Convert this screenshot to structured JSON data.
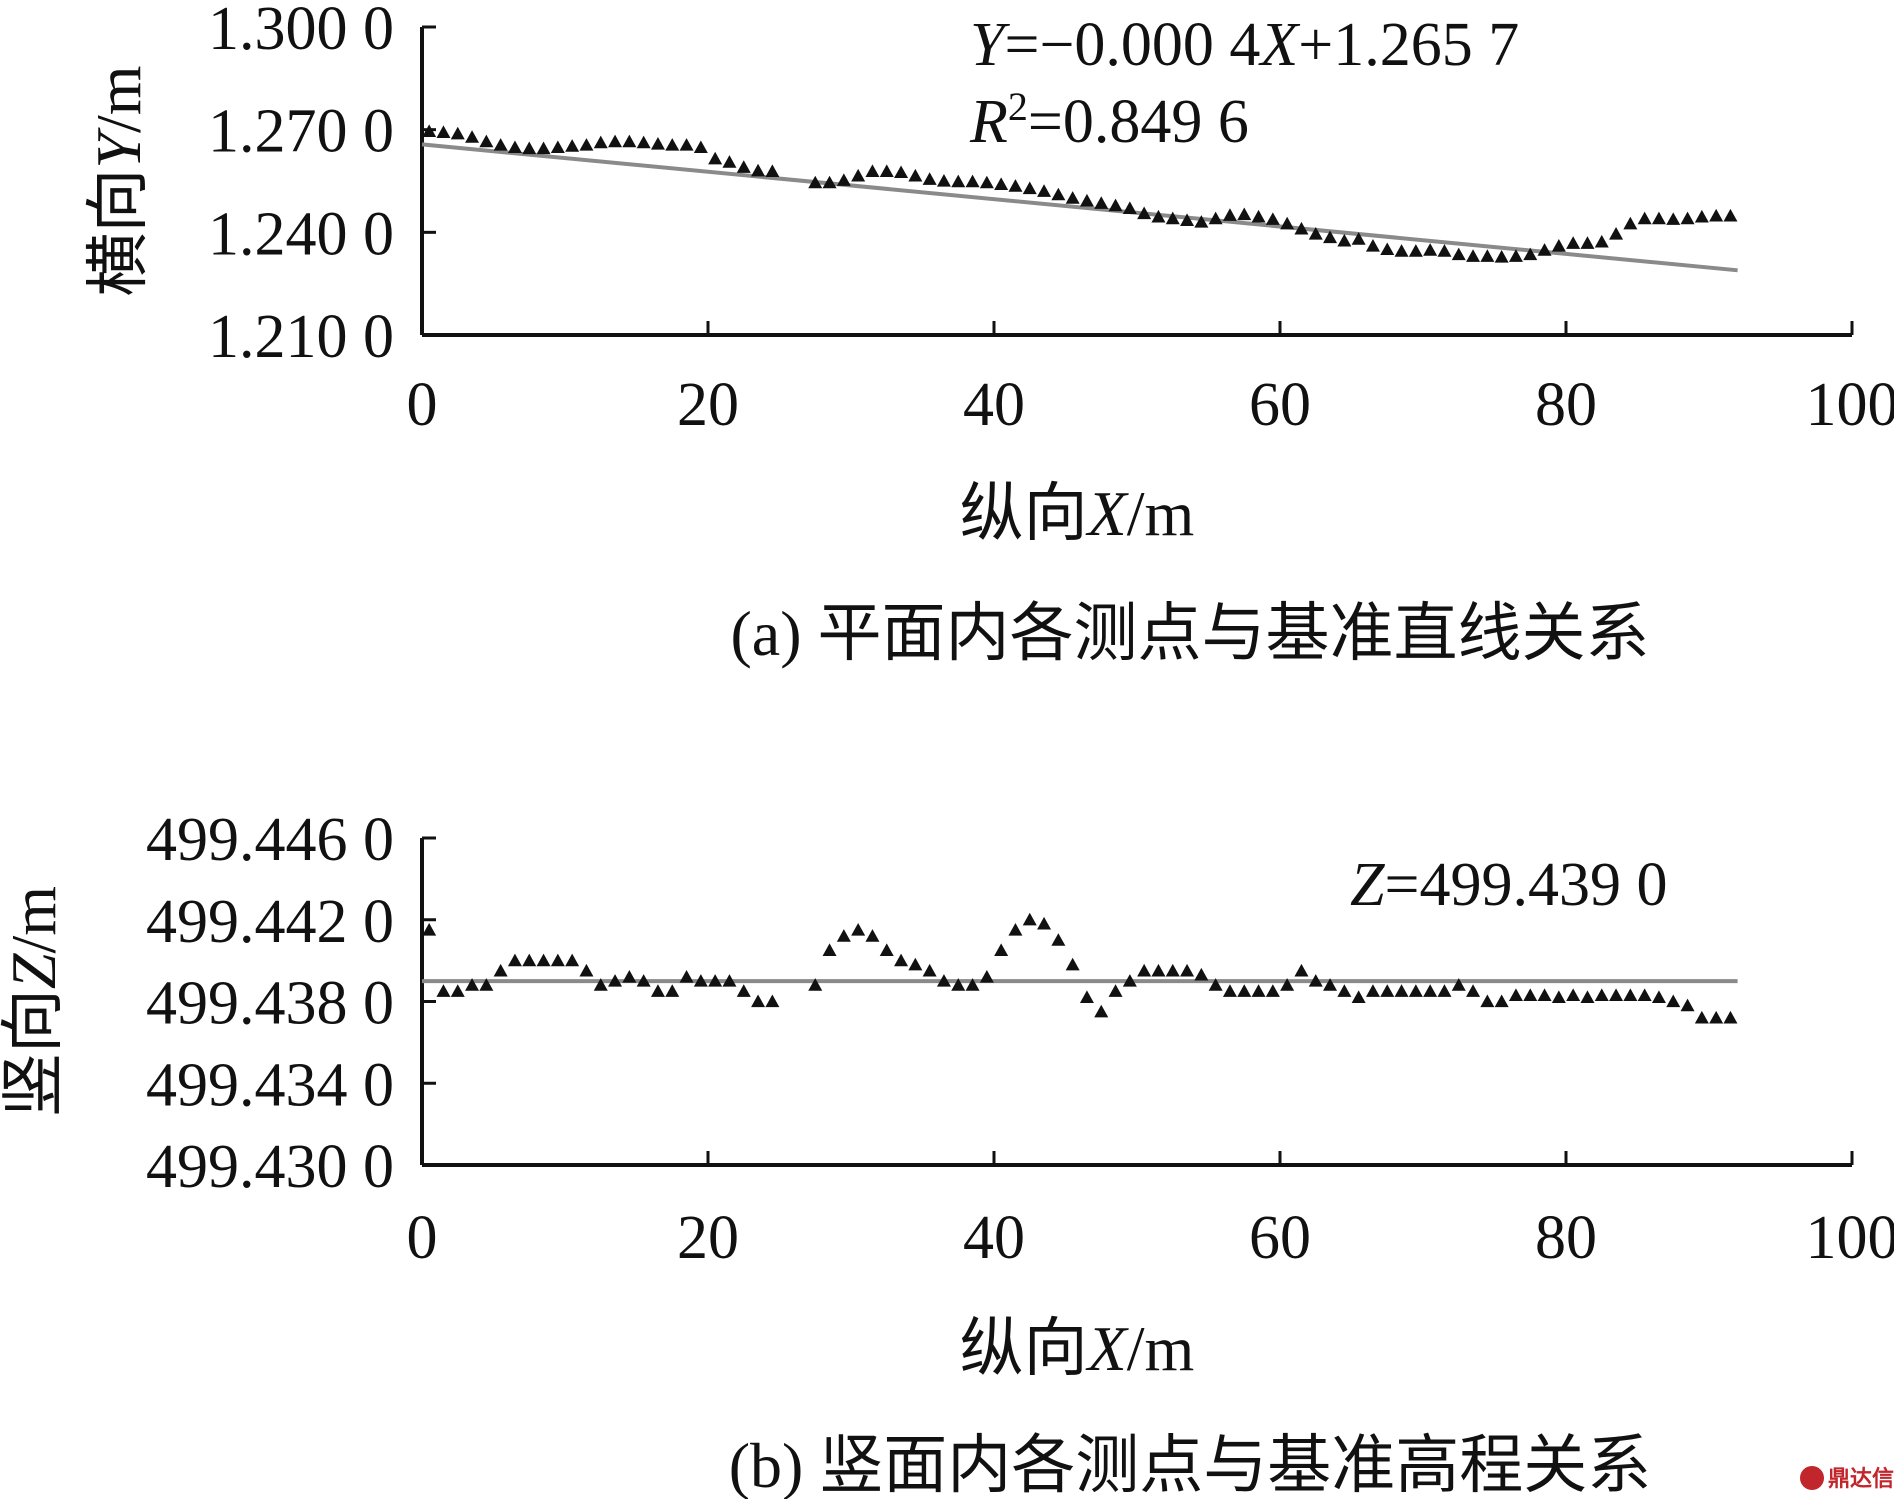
{
  "chart_data": [
    {
      "id": "a",
      "type": "scatter",
      "caption": "(a) 平面内各测点与基准直线关系",
      "xlabel": "纵向X/m",
      "ylabel": "横向Y/m",
      "xlim": [
        0,
        100
      ],
      "ylim": [
        1.21,
        1.3
      ],
      "x_ticks": [
        0,
        20,
        40,
        60,
        80,
        100
      ],
      "x_tick_labels": [
        "0",
        "20",
        "40",
        "60",
        "80",
        "100"
      ],
      "y_ticks": [
        1.21,
        1.24,
        1.27,
        1.3
      ],
      "y_tick_labels": [
        "1.210 0",
        "1.240 0",
        "1.270 0",
        "1.300 0"
      ],
      "equation_lines": [
        "Y=−0.000 4X+1.265 7",
        "R2=0.849 6"
      ],
      "fit_line": {
        "x": [
          0,
          92
        ],
        "y": [
          1.2657,
          1.2289
        ]
      },
      "marker": "triangle",
      "grid": false,
      "series": [
        {
          "x": [
            0.5,
            1.5,
            2.5,
            3.5,
            4.5,
            5.5,
            6.5,
            7.5,
            8.5,
            9.5,
            10.5,
            11.5,
            12.5,
            13.5,
            14.5,
            15.5,
            16.5,
            17.5,
            18.5,
            19.5,
            20.5,
            21.5,
            22.5,
            23.5,
            24.5,
            27.5,
            28.5,
            29.5,
            30.5,
            31.5,
            32.5,
            33.5,
            34.5,
            35.5,
            36.5,
            37.5,
            38.5,
            39.5,
            40.5,
            41.5,
            42.5,
            43.5,
            44.5,
            45.5,
            46.5,
            47.5,
            48.5,
            49.5,
            50.5,
            51.5,
            52.5,
            53.5,
            54.5,
            55.5,
            56.5,
            57.5,
            58.5,
            59.5,
            60.5,
            61.5,
            62.5,
            63.5,
            64.5,
            65.5,
            66.5,
            67.5,
            68.5,
            69.5,
            70.5,
            71.5,
            72.5,
            73.5,
            74.5,
            75.5,
            76.5,
            77.5,
            78.5,
            79.5,
            80.5,
            81.5,
            82.5,
            83.5,
            84.5,
            85.5,
            86.5,
            87.5,
            88.5,
            89.5,
            90.5,
            91.5
          ],
          "y": [
            1.2695,
            1.2692,
            1.2688,
            1.2678,
            1.2665,
            1.2655,
            1.2648,
            1.2645,
            1.2645,
            1.2648,
            1.2652,
            1.2655,
            1.2662,
            1.2665,
            1.2665,
            1.2662,
            1.2658,
            1.2655,
            1.2655,
            1.2648,
            1.2615,
            1.2605,
            1.259,
            1.258,
            1.2578,
            1.2545,
            1.2545,
            1.2552,
            1.2565,
            1.2578,
            1.2578,
            1.2575,
            1.2565,
            1.2555,
            1.255,
            1.2548,
            1.2548,
            1.2545,
            1.254,
            1.2535,
            1.2528,
            1.252,
            1.251,
            1.25,
            1.2492,
            1.2485,
            1.2478,
            1.247,
            1.2455,
            1.2445,
            1.244,
            1.2435,
            1.243,
            1.244,
            1.245,
            1.2452,
            1.2445,
            1.2438,
            1.2425,
            1.241,
            1.2395,
            1.2385,
            1.2375,
            1.238,
            1.236,
            1.235,
            1.2345,
            1.2345,
            1.2348,
            1.2345,
            1.2335,
            1.233,
            1.233,
            1.2328,
            1.233,
            1.2335,
            1.2348,
            1.236,
            1.2368,
            1.2368,
            1.2372,
            1.2395,
            1.2425,
            1.244,
            1.244,
            1.2438,
            1.244,
            1.2445,
            1.2448,
            1.2448
          ]
        }
      ]
    },
    {
      "id": "b",
      "type": "scatter",
      "caption": "(b) 竖面内各测点与基准高程关系",
      "xlabel": "纵向X/m",
      "ylabel": "竖向Z/m",
      "xlim": [
        0,
        100
      ],
      "ylim": [
        499.43,
        499.446
      ],
      "x_ticks": [
        0,
        20,
        40,
        60,
        80,
        100
      ],
      "x_tick_labels": [
        "0",
        "20",
        "40",
        "60",
        "80",
        "100"
      ],
      "y_ticks": [
        499.43,
        499.434,
        499.438,
        499.442,
        499.446
      ],
      "y_tick_labels": [
        "499.430 0",
        "499.434 0",
        "499.438 0",
        "499.442 0",
        "499.446 0"
      ],
      "equation_lines": [
        "Z=499.439 0"
      ],
      "fit_line": {
        "x": [
          0,
          92
        ],
        "y": [
          499.439,
          499.439
        ]
      },
      "marker": "triangle",
      "grid": false,
      "series": [
        {
          "x": [
            0.5,
            1.5,
            2.5,
            3.5,
            4.5,
            5.5,
            6.5,
            7.5,
            8.5,
            9.5,
            10.5,
            11.5,
            12.5,
            13.5,
            14.5,
            15.5,
            16.5,
            17.5,
            18.5,
            19.5,
            20.5,
            21.5,
            22.5,
            23.5,
            24.5,
            27.5,
            28.5,
            29.5,
            30.5,
            31.5,
            32.5,
            33.5,
            34.5,
            35.5,
            36.5,
            37.5,
            38.5,
            39.5,
            40.5,
            41.5,
            42.5,
            43.5,
            44.5,
            45.5,
            46.5,
            47.5,
            48.5,
            49.5,
            50.5,
            51.5,
            52.5,
            53.5,
            54.5,
            55.5,
            56.5,
            57.5,
            58.5,
            59.5,
            60.5,
            61.5,
            62.5,
            63.5,
            64.5,
            65.5,
            66.5,
            67.5,
            68.5,
            69.5,
            70.5,
            71.5,
            72.5,
            73.5,
            74.5,
            75.5,
            76.5,
            77.5,
            78.5,
            79.5,
            80.5,
            81.5,
            82.5,
            83.5,
            84.5,
            85.5,
            86.5,
            87.5,
            88.5,
            89.5,
            90.5,
            91.5
          ],
          "y": [
            499.4415,
            499.4385,
            499.4385,
            499.4388,
            499.4388,
            499.4395,
            499.44,
            499.44,
            499.44,
            499.44,
            499.44,
            499.4395,
            499.4388,
            499.439,
            499.4392,
            499.439,
            499.4385,
            499.4385,
            499.4392,
            499.439,
            499.439,
            499.439,
            499.4385,
            499.438,
            499.438,
            499.4388,
            499.4405,
            499.4412,
            499.4415,
            499.4412,
            499.4405,
            499.44,
            499.4398,
            499.4395,
            499.439,
            499.4388,
            499.4388,
            499.4392,
            499.4405,
            499.4415,
            499.442,
            499.4418,
            499.441,
            499.4398,
            499.4382,
            499.4375,
            499.4385,
            499.439,
            499.4395,
            499.4395,
            499.4395,
            499.4395,
            499.4393,
            499.4388,
            499.4385,
            499.4385,
            499.4385,
            499.4385,
            499.4388,
            499.4395,
            499.439,
            499.4388,
            499.4385,
            499.4382,
            499.4385,
            499.4385,
            499.4385,
            499.4385,
            499.4385,
            499.4385,
            499.4388,
            499.4385,
            499.438,
            499.438,
            499.4383,
            499.4383,
            499.4383,
            499.4382,
            499.4383,
            499.4382,
            499.4383,
            499.4383,
            499.4383,
            499.4383,
            499.4382,
            499.438,
            499.4378,
            499.4372,
            499.4372,
            499.4372
          ]
        }
      ]
    }
  ],
  "watermark": "鼎达信",
  "colors": {
    "marker": "#111111",
    "fit_line": "#8a8a8a",
    "axis": "#111111",
    "watermark": "#c0262c"
  }
}
